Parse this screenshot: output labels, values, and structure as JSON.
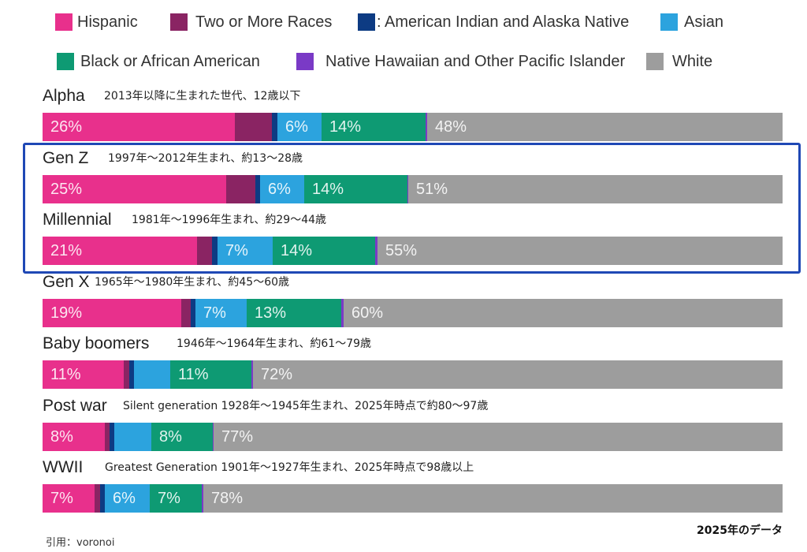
{
  "chart_data": {
    "type": "bar",
    "orientation": "horizontal",
    "stacked": true,
    "legend_position": "top",
    "categories": [
      "Alpha",
      "Gen Z",
      "Millennial",
      "Gen X",
      "Baby boomers",
      "Post war",
      "WWII"
    ],
    "category_notes": [
      "2013年以降に生まれた世代、12歳以下",
      "1997年～2012年生まれ、約13～28歳",
      "1981年～1996年生まれ、約29～44歳",
      "1965年～1980年生まれ、約45～60歳",
      "1946年～1964年生まれ、約61～79歳",
      "Silent generation 1928年～1945年生まれ、2025年時点で約80～97歳",
      "Greatest Generation 1901年～1927年生まれ、2025年時点で98歳以上"
    ],
    "series": [
      {
        "name": "Hispanic",
        "color": "#E8308C",
        "values": [
          26,
          25,
          21,
          19,
          11,
          8.4,
          7
        ],
        "labels": [
          "26%",
          "25%",
          "21%",
          "19%",
          "11%",
          "8%",
          "7%"
        ]
      },
      {
        "name": "Two or More Races",
        "color": "#8A2463",
        "values": [
          5,
          4,
          2,
          1.3,
          0.8,
          0.7,
          0.8
        ]
      },
      {
        "name": ": American Indian and Alaska Native",
        "color": "#0D3B83",
        "values": [
          0.7,
          0.7,
          0.8,
          0.6,
          0.6,
          0.6,
          0.6
        ]
      },
      {
        "name": "Asian",
        "color": "#2CA3DE",
        "values": [
          6,
          6,
          7.4,
          7,
          5,
          5,
          6
        ],
        "labels": [
          "6%",
          "6%",
          "7%",
          "7%",
          null,
          null,
          "6%"
        ]
      },
      {
        "name": "Black or African American",
        "color": "#0E9A73",
        "values": [
          14,
          14,
          14,
          13,
          11,
          8.3,
          7
        ],
        "labels": [
          "14%",
          "14%",
          "14%",
          "13%",
          "11%",
          "8%",
          "7%"
        ]
      },
      {
        "name": "Native Hawaiian and Other Pacific Islander",
        "color": "#7A3AC6",
        "values": [
          0.2,
          0.2,
          0.3,
          0.3,
          0.2,
          0.2,
          0.3
        ]
      },
      {
        "name": "White",
        "color": "#9D9D9D",
        "values": [
          48,
          51,
          55,
          60,
          72,
          77,
          78
        ],
        "labels": [
          "48%",
          "51%",
          "55%",
          "60%",
          "72%",
          "77%",
          "78%"
        ]
      }
    ],
    "highlight_rows": [
      1,
      2
    ],
    "highlight_color": "#1F48B5"
  },
  "footer": {
    "data_year": "2025年のデータ",
    "source": "引用：voronoi"
  }
}
